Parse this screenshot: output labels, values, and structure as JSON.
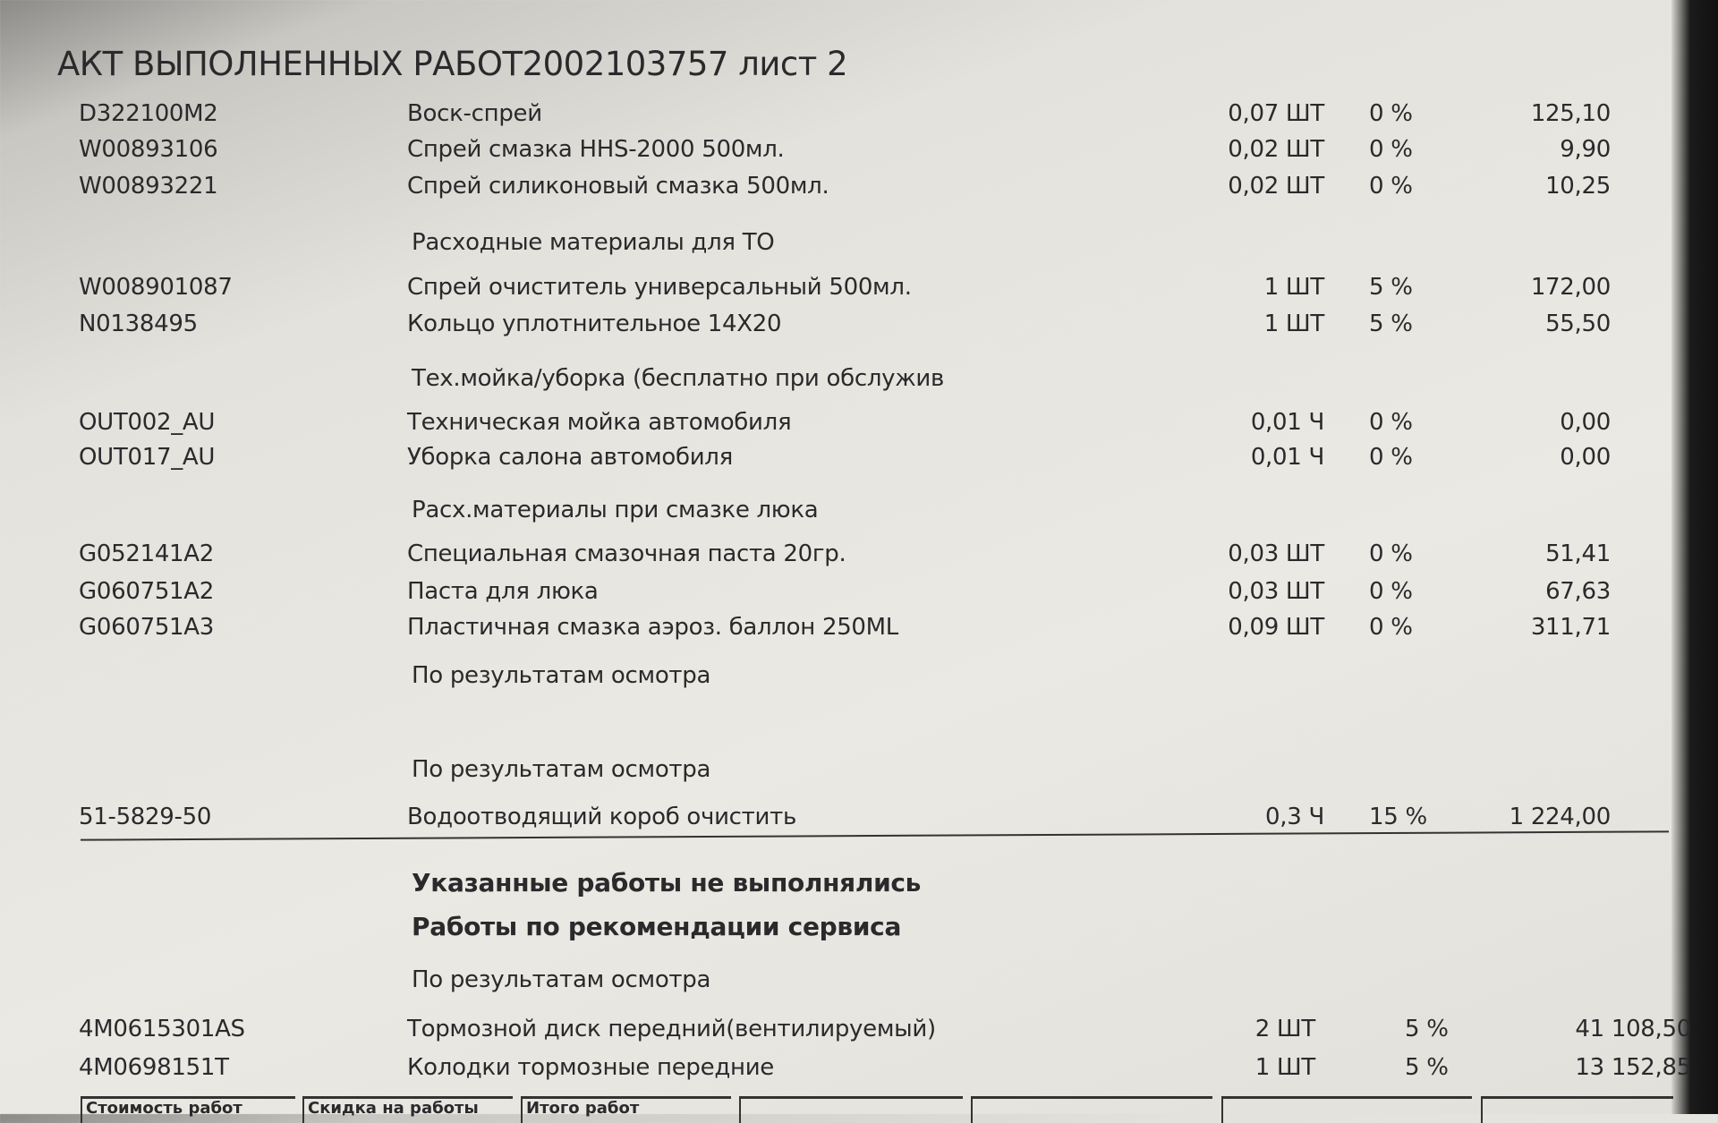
{
  "title": "АКТ ВЫПОЛНЕННЫХ РАБОТ2002103757 лист 2",
  "rows": [
    {
      "code": "D322100M2",
      "desc": "Воск-спрей",
      "qty": "0,07 ШТ",
      "pct": "0 %",
      "price": "125,10"
    },
    {
      "code": "W00893106",
      "desc": "Спрей смазка HHS-2000 500мл.",
      "qty": "0,02 ШТ",
      "pct": "0 %",
      "price": "9,90"
    },
    {
      "code": "W00893221",
      "desc": "Спрей силиконовый смазка 500мл.",
      "qty": "0,02 ШТ",
      "pct": "0 %",
      "price": "10,25"
    },
    {
      "header": "Расходные материалы для ТО"
    },
    {
      "code": "W008901087",
      "desc": "Спрей очиститель универсальный 500мл.",
      "qty": "1 ШТ",
      "pct": "5 %",
      "price": "172,00"
    },
    {
      "code": "N0138495",
      "desc": "Кольцо уплотнительное 14X20",
      "qty": "1 ШТ",
      "pct": "5 %",
      "price": "55,50"
    },
    {
      "header": "Тех.мойка/уборка (бесплатно при обслужив"
    },
    {
      "code": "OUT002_AU",
      "desc": "Техническая мойка автомобиля",
      "qty": "0,01  Ч",
      "pct": "0 %",
      "price": "0,00"
    },
    {
      "code": "OUT017_AU",
      "desc": "Уборка салона автомобиля",
      "qty": "0,01  Ч",
      "pct": "0 %",
      "price": "0,00"
    },
    {
      "header": "Расх.материалы при смазке люка"
    },
    {
      "code": "G052141A2",
      "desc": "Специальная смазочная паста 20гр.",
      "qty": "0,03 ШТ",
      "pct": "0 %",
      "price": "51,41"
    },
    {
      "code": "G060751A2",
      "desc": "Паста для люка",
      "qty": "0,03 ШТ",
      "pct": "0 %",
      "price": "67,63"
    },
    {
      "code": "G060751A3",
      "desc": "Пластичная смазка аэроз. баллон 250ML",
      "qty": "0,09 ШТ",
      "pct": "0 %",
      "price": "311,71"
    },
    {
      "header": "По результатам осмотра"
    },
    {
      "header": "По результатам осмотра"
    },
    {
      "code": "51-5829-50",
      "desc": "Водоотводящий короб очистить",
      "qty": "0,3  Ч",
      "pct": "15 %",
      "price": "1 224,00"
    }
  ],
  "not_done": "Указанные работы не выполнялись",
  "recommended": "Работы по рекомендации сервиса",
  "rec_header": "По результатам осмотра",
  "rec_rows": [
    {
      "code": "4M0615301AS",
      "desc": "Тормозной диск передний(вентилируемый)",
      "qty": "2 ШТ",
      "pct": "5 %",
      "price": "41 108,50"
    },
    {
      "code": "4M0698151T",
      "desc": "Колодки тормозные передние",
      "qty": "1 ШТ",
      "pct": "5 %",
      "price": "13 152,85"
    }
  ],
  "footer": [
    "Стоимость работ",
    "Скидка на работы",
    "Итого работ"
  ]
}
